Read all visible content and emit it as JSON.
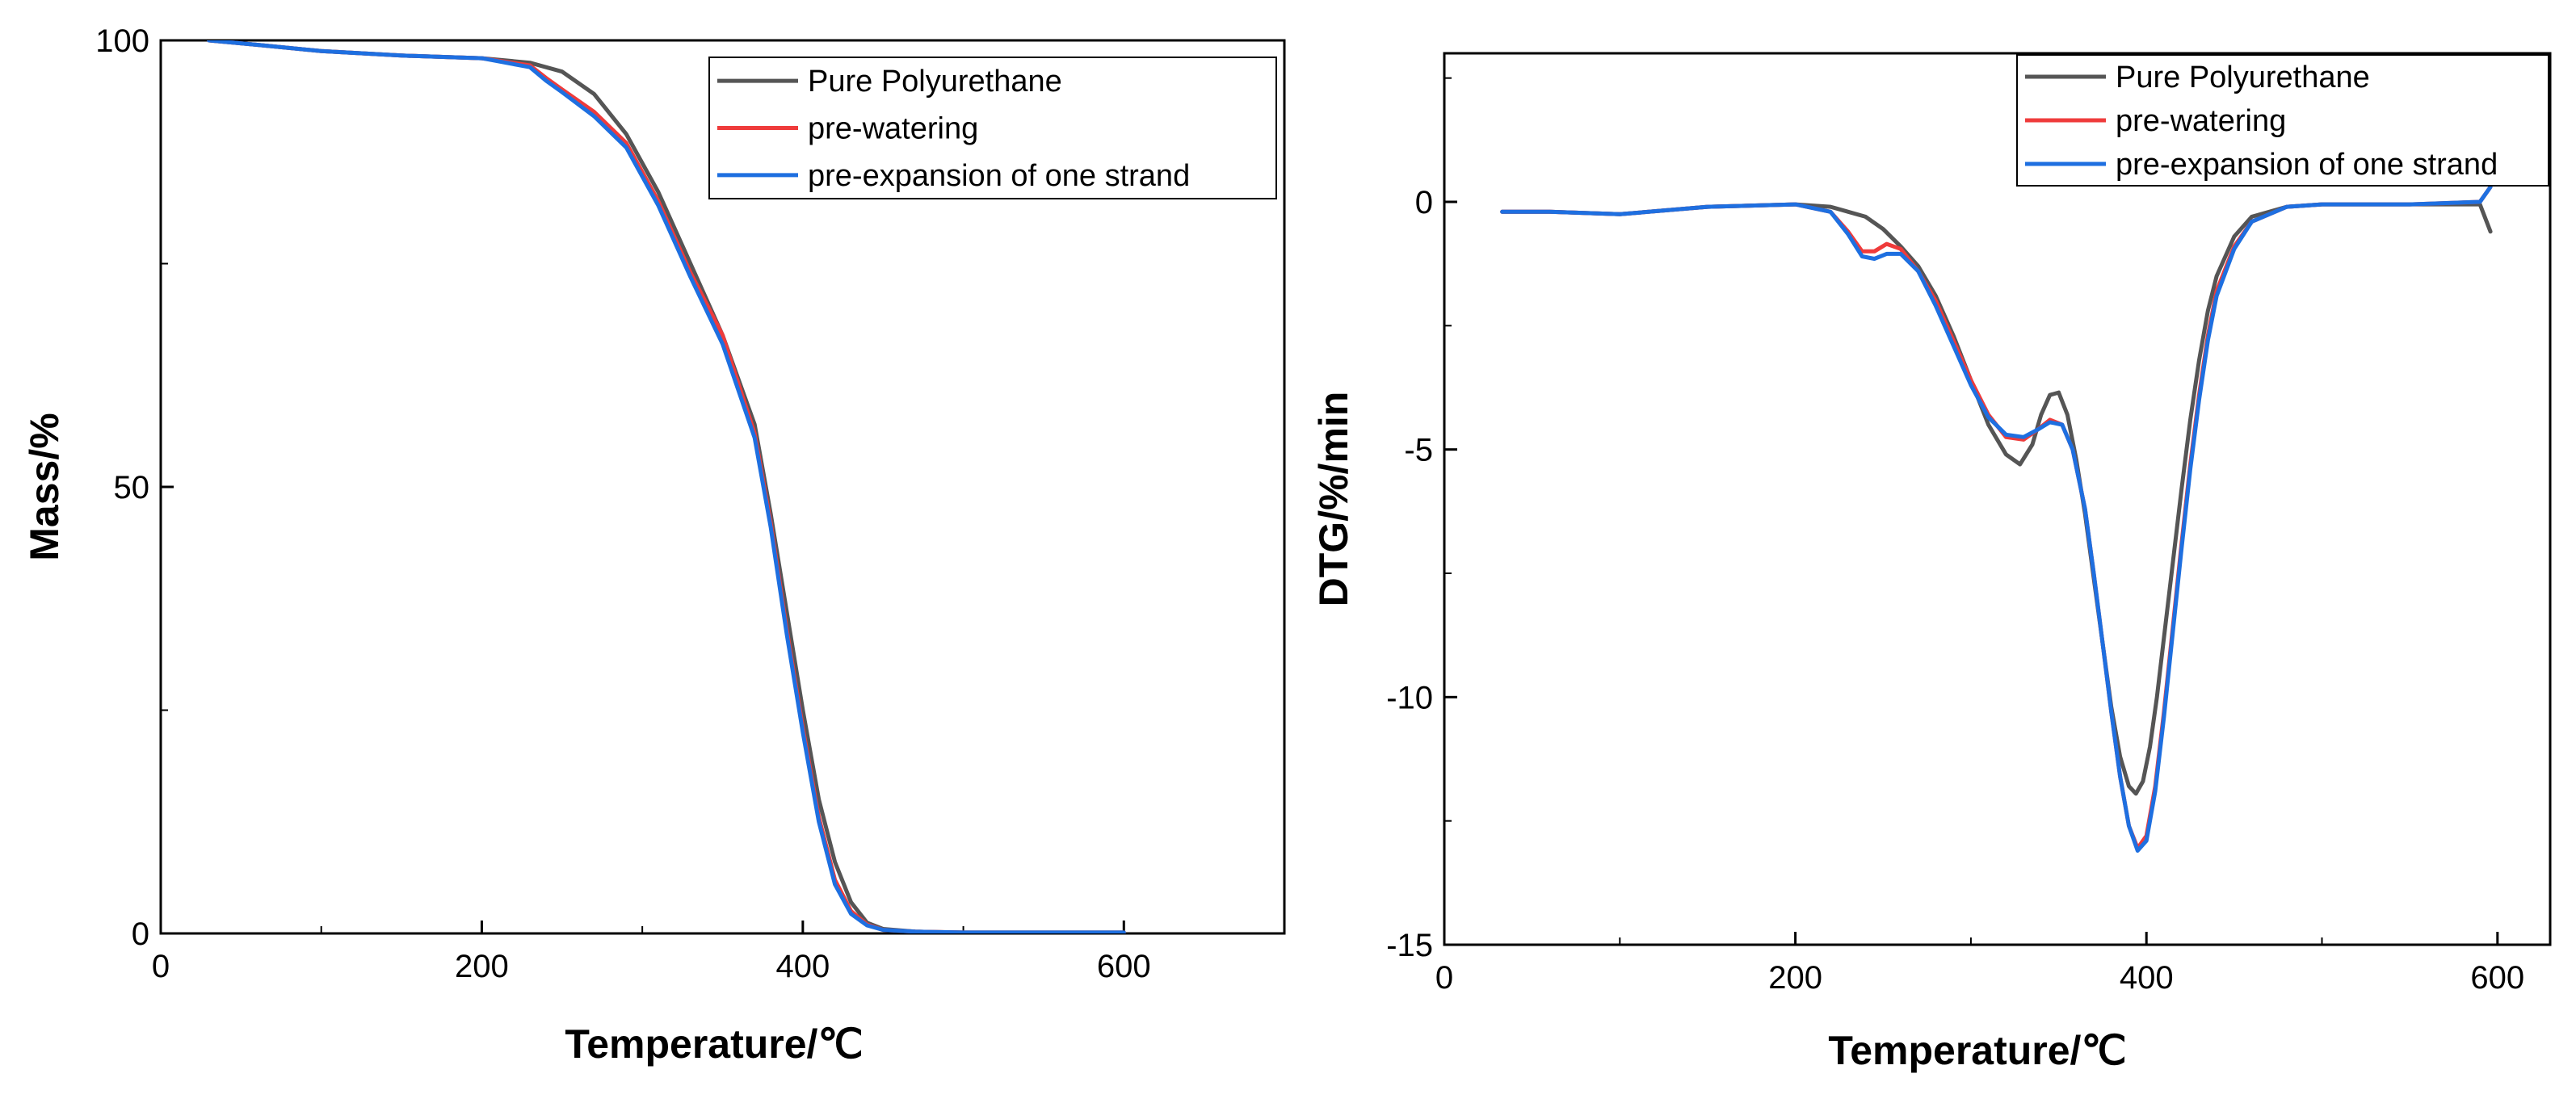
{
  "chart_data": [
    {
      "type": "line",
      "name": "tga",
      "xlabel": "Temperature/℃",
      "ylabel": "Mass/%",
      "xlim": [
        0,
        700
      ],
      "ylim": [
        0,
        100
      ],
      "xticks": [
        0,
        200,
        400,
        600
      ],
      "xminor": [
        100,
        300,
        500
      ],
      "yticks": [
        0,
        50,
        100
      ],
      "yminor": [
        25,
        75
      ],
      "legend_position": "top-right",
      "series": [
        {
          "name": "Pure Polyurethane",
          "color": "#555555",
          "x": [
            30,
            60,
            100,
            150,
            200,
            230,
            250,
            270,
            290,
            310,
            330,
            350,
            370,
            380,
            390,
            400,
            410,
            420,
            430,
            440,
            450,
            470,
            500,
            550,
            600
          ],
          "y": [
            100,
            99.5,
            98.8,
            98.3,
            98.0,
            97.5,
            96.5,
            94,
            89.5,
            83,
            75,
            67,
            57,
            47,
            36,
            25,
            15,
            8,
            3.5,
            1.2,
            0.5,
            0.2,
            0.1,
            0.1,
            0.1
          ]
        },
        {
          "name": "pre-watering",
          "color": "#ef3b3b",
          "x": [
            30,
            60,
            100,
            150,
            200,
            230,
            240,
            250,
            270,
            290,
            310,
            330,
            350,
            370,
            380,
            390,
            400,
            410,
            420,
            430,
            440,
            450,
            470,
            500,
            550,
            600
          ],
          "y": [
            100,
            99.5,
            98.8,
            98.3,
            98.0,
            97.2,
            95.8,
            94.5,
            92.0,
            88.5,
            82,
            74,
            67,
            56,
            46,
            34,
            23,
            13,
            6,
            2.5,
            1.0,
            0.4,
            0.2,
            0.1,
            0.1,
            0.1
          ]
        },
        {
          "name": "pre-expansion of one strand",
          "color": "#1e6fe0",
          "x": [
            30,
            60,
            100,
            150,
            200,
            230,
            240,
            250,
            270,
            290,
            310,
            330,
            350,
            370,
            380,
            390,
            400,
            410,
            420,
            430,
            440,
            450,
            470,
            500,
            550,
            600
          ],
          "y": [
            100,
            99.5,
            98.8,
            98.3,
            98.0,
            97.0,
            95.5,
            94.2,
            91.5,
            88.0,
            81.5,
            73.5,
            66,
            55.5,
            45.5,
            33.5,
            22.5,
            12.5,
            5.5,
            2.2,
            0.9,
            0.4,
            0.2,
            0.1,
            0.1,
            0.1
          ]
        }
      ]
    },
    {
      "type": "line",
      "name": "dtg",
      "xlabel": "Temperature/℃",
      "ylabel": "DTG/%/min",
      "xlim": [
        0,
        630
      ],
      "ylim": [
        -15,
        3
      ],
      "xticks": [
        0,
        200,
        400,
        600
      ],
      "xminor": [
        100,
        300,
        500
      ],
      "yticks": [
        -15,
        -10,
        -5,
        0
      ],
      "yminor": [
        -12.5,
        -7.5,
        -2.5,
        2.5
      ],
      "legend_position": "top-right",
      "series": [
        {
          "name": "Pure Polyurethane",
          "color": "#555555",
          "x": [
            33,
            60,
            100,
            150,
            200,
            220,
            240,
            250,
            260,
            270,
            280,
            290,
            300,
            310,
            320,
            328,
            335,
            340,
            345,
            350,
            355,
            360,
            365,
            370,
            375,
            380,
            385,
            390,
            394,
            398,
            402,
            406,
            410,
            415,
            420,
            425,
            430,
            435,
            440,
            450,
            460,
            480,
            500,
            550,
            590,
            596
          ],
          "y": [
            -0.2,
            -0.2,
            -0.25,
            -0.1,
            -0.05,
            -0.1,
            -0.3,
            -0.55,
            -0.9,
            -1.3,
            -1.9,
            -2.7,
            -3.6,
            -4.5,
            -5.1,
            -5.3,
            -4.9,
            -4.3,
            -3.9,
            -3.85,
            -4.3,
            -5.2,
            -6.3,
            -7.6,
            -8.9,
            -10.2,
            -11.2,
            -11.8,
            -11.95,
            -11.7,
            -11.0,
            -10.0,
            -8.8,
            -7.3,
            -5.8,
            -4.4,
            -3.2,
            -2.2,
            -1.5,
            -0.7,
            -0.3,
            -0.1,
            -0.05,
            -0.05,
            -0.05,
            -0.6
          ]
        },
        {
          "name": "pre-watering",
          "color": "#ef3b3b",
          "x": [
            33,
            60,
            100,
            150,
            200,
            220,
            230,
            238,
            245,
            252,
            260,
            270,
            280,
            290,
            300,
            310,
            320,
            330,
            338,
            345,
            352,
            358,
            365,
            370,
            375,
            380,
            385,
            390,
            395,
            400,
            405,
            410,
            415,
            420,
            425,
            430,
            435,
            440,
            450,
            460,
            480,
            500,
            550,
            590,
            596
          ],
          "y": [
            -0.2,
            -0.2,
            -0.25,
            -0.1,
            -0.05,
            -0.2,
            -0.6,
            -1.0,
            -1.0,
            -0.85,
            -0.95,
            -1.4,
            -2.0,
            -2.8,
            -3.6,
            -4.3,
            -4.75,
            -4.8,
            -4.6,
            -4.4,
            -4.5,
            -5.0,
            -6.2,
            -7.5,
            -8.9,
            -10.3,
            -11.6,
            -12.6,
            -13.05,
            -12.8,
            -11.8,
            -10.3,
            -8.6,
            -6.9,
            -5.3,
            -3.9,
            -2.7,
            -1.8,
            -0.9,
            -0.4,
            -0.1,
            -0.05,
            -0.05,
            0.0,
            0.3
          ]
        },
        {
          "name": "pre-expansion of one strand",
          "color": "#1e6fe0",
          "x": [
            33,
            60,
            100,
            150,
            200,
            220,
            230,
            238,
            245,
            252,
            260,
            270,
            280,
            290,
            300,
            310,
            320,
            330,
            338,
            345,
            352,
            358,
            365,
            370,
            375,
            380,
            385,
            390,
            395,
            400,
            405,
            410,
            415,
            420,
            425,
            430,
            435,
            440,
            450,
            460,
            480,
            500,
            550,
            590,
            596
          ],
          "y": [
            -0.2,
            -0.2,
            -0.25,
            -0.1,
            -0.05,
            -0.2,
            -0.65,
            -1.1,
            -1.15,
            -1.05,
            -1.05,
            -1.4,
            -2.1,
            -2.9,
            -3.7,
            -4.35,
            -4.7,
            -4.75,
            -4.6,
            -4.45,
            -4.5,
            -5.0,
            -6.2,
            -7.5,
            -8.9,
            -10.3,
            -11.6,
            -12.6,
            -13.1,
            -12.9,
            -11.9,
            -10.4,
            -8.7,
            -7.0,
            -5.4,
            -4.0,
            -2.8,
            -1.9,
            -0.95,
            -0.4,
            -0.1,
            -0.05,
            -0.05,
            0.0,
            0.3
          ]
        }
      ]
    }
  ]
}
